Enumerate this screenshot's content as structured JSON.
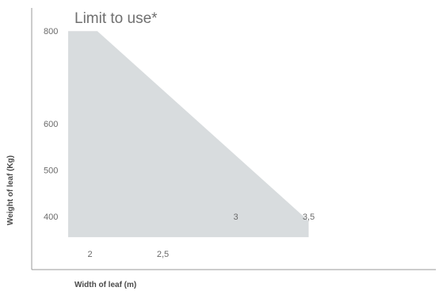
{
  "chart_data": {
    "type": "area",
    "title": "Limit to use*",
    "xlabel": "Width of leaf (m)",
    "ylabel": "Weight of leaf (Kg)",
    "x_ticks": [
      {
        "value": 2,
        "label": "2"
      },
      {
        "value": 2.5,
        "label": "2,5"
      }
    ],
    "y_ticks": [
      {
        "value": 400,
        "label": "400"
      },
      {
        "value": 500,
        "label": "500"
      },
      {
        "value": 600,
        "label": "600"
      },
      {
        "value": 800,
        "label": "800"
      }
    ],
    "inner_labels": [
      {
        "x": 3,
        "y": 400,
        "label": "3"
      },
      {
        "x": 3.5,
        "y": 400,
        "label": "3,5"
      }
    ],
    "series": [
      {
        "points": [
          {
            "x": 1.85,
            "y": 800
          },
          {
            "x": 2.05,
            "y": 800
          },
          {
            "x": 3.5,
            "y": 390
          },
          {
            "x": 3.5,
            "y": 355
          },
          {
            "x": 1.85,
            "y": 355
          }
        ]
      }
    ],
    "xlim": [
      1.6,
      4.4
    ],
    "ylim": [
      285,
      850
    ],
    "fill_color": "#d8dcde",
    "axis_color": "#9a9a9a",
    "grid": false,
    "legend": "none"
  }
}
